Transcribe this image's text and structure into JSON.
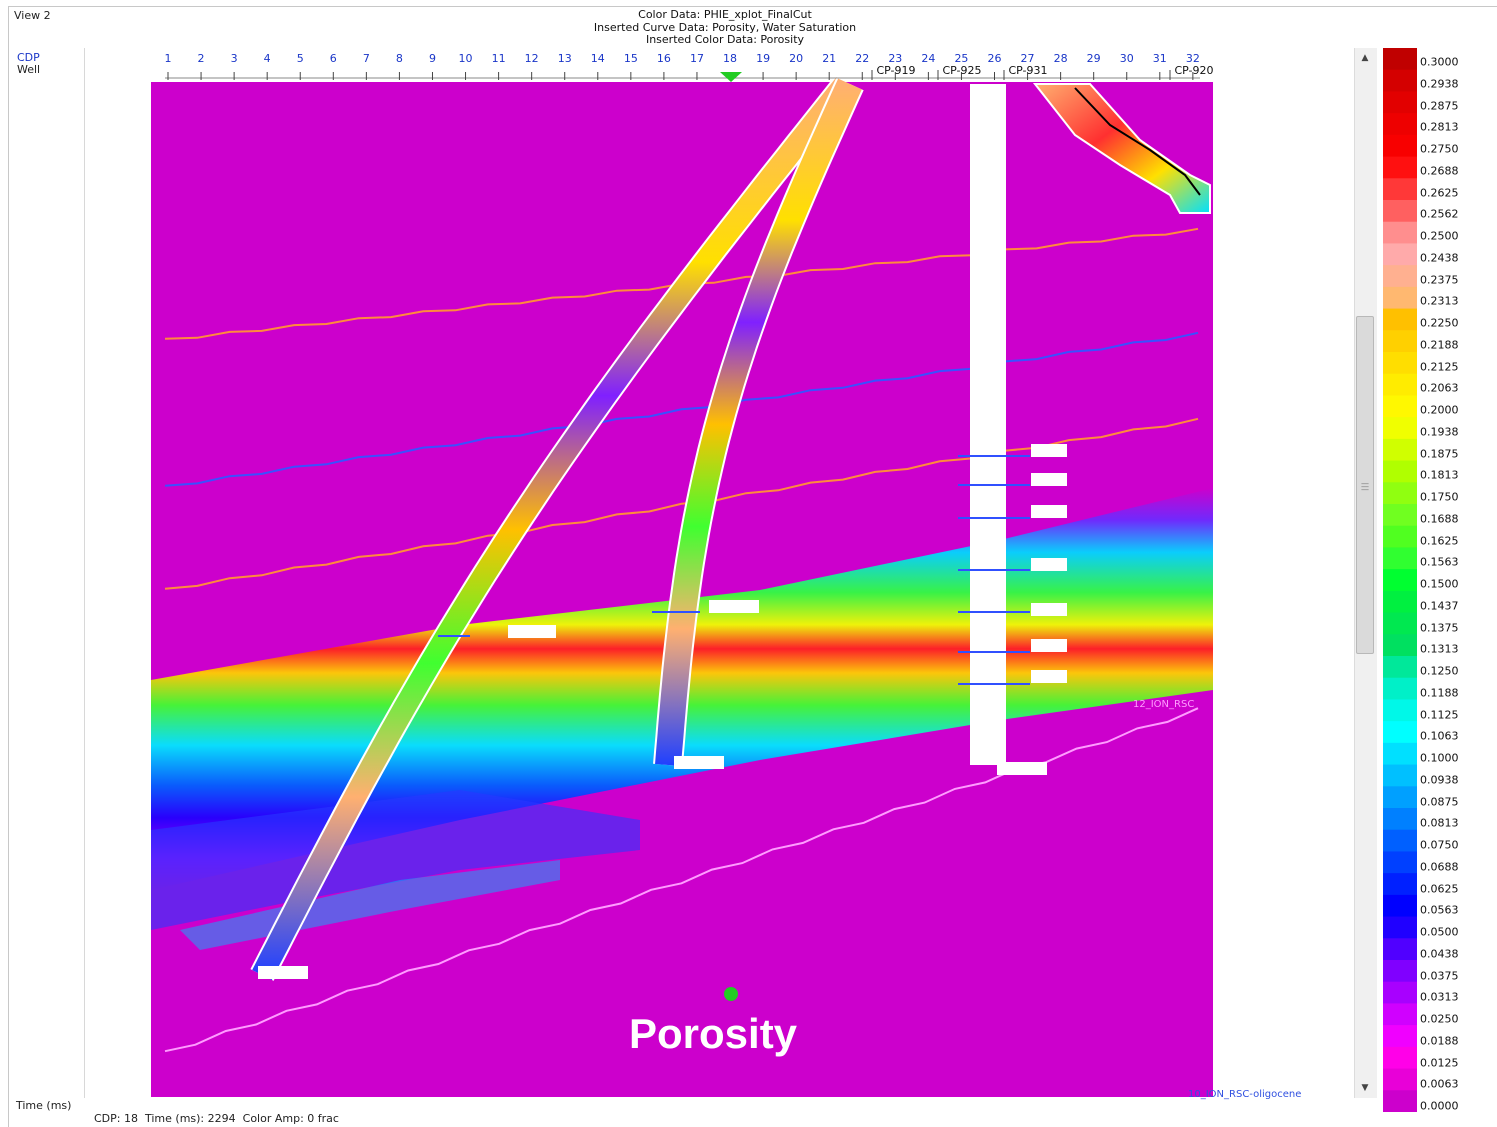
{
  "view": {
    "title": "View 2"
  },
  "header": {
    "color_data": "Color Data: PHIE_xplot_FinalCut",
    "inserted_curve": "Inserted Curve Data: Porosity, Water Saturation",
    "inserted_color": "Inserted Color Data: Porosity"
  },
  "axis": {
    "cdp_label": "CDP",
    "well_label": "Well",
    "time_label": "Time (ms)",
    "cdp_ticks": [
      "1",
      "2",
      "3",
      "4",
      "5",
      "6",
      "7",
      "8",
      "9",
      "10",
      "11",
      "12",
      "13",
      "14",
      "15",
      "16",
      "17",
      "18",
      "19",
      "20",
      "21",
      "22",
      "23",
      "24",
      "25",
      "26",
      "27",
      "28",
      "29",
      "30",
      "31",
      "32"
    ],
    "current_cdp": 18
  },
  "wells": [
    {
      "name": "CP-919"
    },
    {
      "name": "CP-925"
    },
    {
      "name": "CP-931"
    },
    {
      "name": "CP-920"
    }
  ],
  "horizons": {
    "tag_12": "12_ION_RSC",
    "tag_10": "10_ION_RSC-oligocene"
  },
  "status": {
    "cdp": "CDP: 18",
    "time": "Time (ms): 2294",
    "amp": "Color Amp: 0 frac"
  },
  "overlay": {
    "label": "Porosity"
  },
  "colorbar": {
    "labels": [
      "0.3000",
      "0.2938",
      "0.2875",
      "0.2813",
      "0.2750",
      "0.2688",
      "0.2625",
      "0.2562",
      "0.2500",
      "0.2438",
      "0.2375",
      "0.2313",
      "0.2250",
      "0.2188",
      "0.2125",
      "0.2063",
      "0.2000",
      "0.1938",
      "0.1875",
      "0.1813",
      "0.1750",
      "0.1688",
      "0.1625",
      "0.1563",
      "0.1500",
      "0.1437",
      "0.1375",
      "0.1313",
      "0.1250",
      "0.1188",
      "0.1125",
      "0.1063",
      "0.1000",
      "0.0938",
      "0.0875",
      "0.0813",
      "0.0750",
      "0.0688",
      "0.0625",
      "0.0563",
      "0.0500",
      "0.0438",
      "0.0375",
      "0.0313",
      "0.0250",
      "0.0188",
      "0.0125",
      "0.0063",
      "0.0000"
    ],
    "colors": [
      "#c00000",
      "#d40000",
      "#e20000",
      "#ee0000",
      "#f80000",
      "#ff1010",
      "#ff3838",
      "#ff6060",
      "#ff8e8e",
      "#ffaaaa",
      "#ffb090",
      "#ffb870",
      "#ffc000",
      "#ffd000",
      "#ffde00",
      "#ffec00",
      "#fff800",
      "#f0ff00",
      "#d0ff00",
      "#b0ff00",
      "#90ff10",
      "#70ff20",
      "#50ff20",
      "#30ff30",
      "#00ff30",
      "#00f040",
      "#00e850",
      "#00e060",
      "#00e89a",
      "#00f0c8",
      "#00f8e8",
      "#00ffff",
      "#00e0ff",
      "#00c0ff",
      "#00a0ff",
      "#0080ff",
      "#0060ff",
      "#0040ff",
      "#0020ff",
      "#0000ff",
      "#2000ff",
      "#5000ff",
      "#8000ff",
      "#a800ff",
      "#d000ff",
      "#f000ff",
      "#ff00e8",
      "#e800d8",
      "#cc00cc"
    ]
  },
  "colors": {
    "background": "#cc00cc",
    "horizon_orange": "#ff8a3c",
    "horizon_blue": "#3a50ff",
    "horizon_pink": "#ff9cff",
    "cdp_blue": "#1a36c8",
    "cursor_green": "#22cc22"
  }
}
